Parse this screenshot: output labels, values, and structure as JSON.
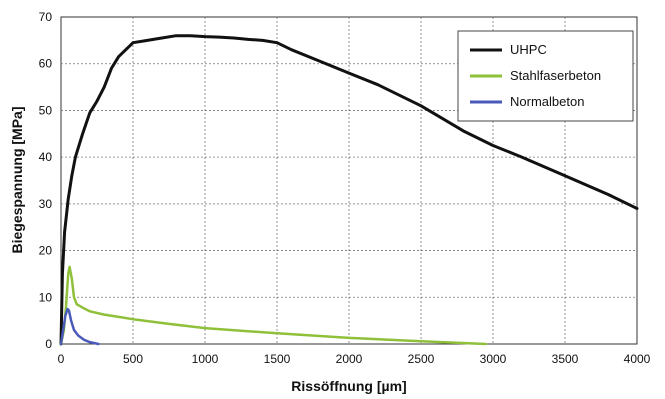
{
  "chart_data": {
    "type": "line",
    "title": "",
    "xlabel": "Rissöffnung [µm]",
    "ylabel": "Biegespannung [MPa]",
    "xlim": [
      0,
      4000
    ],
    "ylim": [
      0,
      70
    ],
    "x_ticks": [
      "0",
      "500",
      "1000",
      "1500",
      "2000",
      "2500",
      "3000",
      "3500",
      "4000"
    ],
    "y_ticks": [
      "0",
      "10",
      "20",
      "30",
      "40",
      "50",
      "60",
      "70"
    ],
    "grid": true,
    "legend_position": "top-right",
    "series": [
      {
        "name": "UHPC",
        "color": "#111111",
        "x": [
          0,
          10,
          25,
          50,
          75,
          100,
          150,
          200,
          250,
          300,
          350,
          400,
          450,
          500,
          600,
          700,
          800,
          900,
          1000,
          1100,
          1200,
          1300,
          1400,
          1500,
          1600,
          1800,
          2000,
          2200,
          2500,
          2800,
          3000,
          3200,
          3500,
          3800,
          4000
        ],
        "y": [
          0,
          15,
          24,
          31,
          36,
          40,
          45,
          49.5,
          52,
          55,
          59,
          61.5,
          63,
          64.5,
          65,
          65.5,
          66,
          66,
          65.8,
          65.7,
          65.5,
          65.2,
          65,
          64.5,
          63,
          60.5,
          58,
          55.5,
          51,
          45.5,
          42.5,
          40,
          36,
          32,
          29
        ]
      },
      {
        "name": "Stahlfaserbeton",
        "color": "#8fc03a",
        "x": [
          0,
          20,
          35,
          50,
          60,
          75,
          90,
          110,
          150,
          200,
          300,
          400,
          500,
          750,
          1000,
          1500,
          2000,
          2500,
          2950
        ],
        "y": [
          0,
          3,
          8,
          15,
          16.5,
          14,
          10,
          8.5,
          7.8,
          7,
          6.3,
          5.8,
          5.3,
          4.3,
          3.4,
          2.3,
          1.3,
          0.6,
          0
        ]
      },
      {
        "name": "Normalbeton",
        "color": "#4a5ab8",
        "x": [
          0,
          15,
          30,
          45,
          55,
          70,
          90,
          120,
          160,
          200,
          260
        ],
        "y": [
          0,
          3,
          6,
          7.5,
          7.2,
          5,
          3,
          1.8,
          0.9,
          0.4,
          0
        ]
      }
    ]
  }
}
